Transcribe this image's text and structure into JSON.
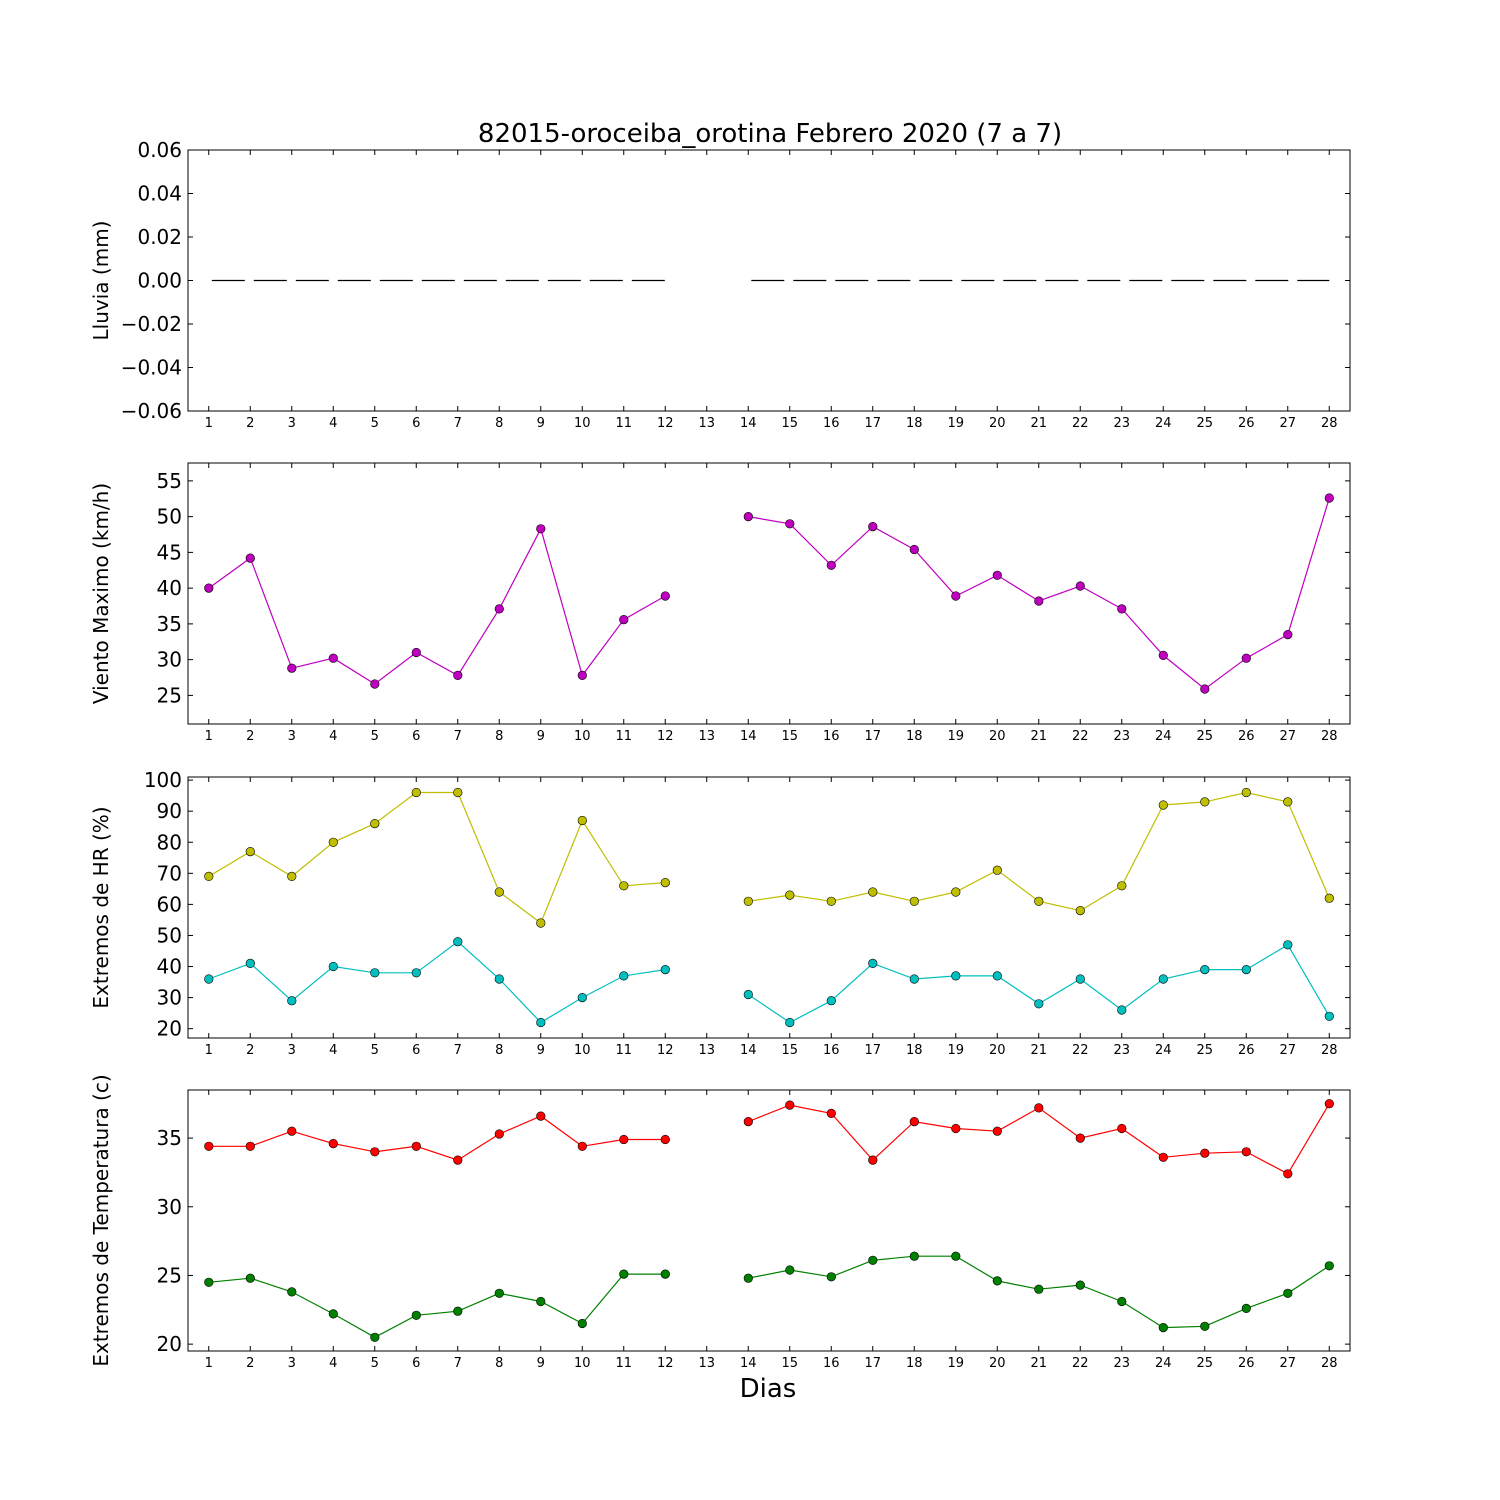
{
  "chart_data": {
    "type": "line",
    "title": "82015-oroceiba_orotina Febrero 2020  (7 a 7)",
    "xlabel": "Dias",
    "x": [
      1,
      2,
      3,
      4,
      5,
      6,
      7,
      8,
      9,
      10,
      11,
      12,
      13,
      14,
      15,
      16,
      17,
      18,
      19,
      20,
      21,
      22,
      23,
      24,
      25,
      26,
      27,
      28
    ],
    "panels": [
      {
        "id": "lluvia",
        "ylabel": "Lluvia (mm)",
        "ylim": [
          -0.06,
          0.06
        ],
        "yticks": [
          0.06,
          0.04,
          0.02,
          0.0,
          -0.02,
          -0.04,
          -0.06
        ],
        "ytick_labels": [
          "0.06",
          "0.04",
          "0.02",
          "0.00",
          "−0.02",
          "−0.04",
          "−0.06"
        ],
        "series": [
          {
            "color": "#000000",
            "style": "dashed",
            "marker": "none",
            "values": [
              0,
              0,
              0,
              0,
              0,
              0,
              0,
              0,
              0,
              0,
              0,
              0,
              null,
              0,
              0,
              0,
              0,
              0,
              0,
              0,
              0,
              0,
              0,
              0,
              0,
              0,
              0,
              0
            ]
          }
        ]
      },
      {
        "id": "viento",
        "ylabel": "Viento Maximo (km/h)",
        "ylim": [
          21,
          57.5
        ],
        "yticks": [
          55,
          50,
          45,
          40,
          35,
          30,
          25
        ],
        "ytick_labels": [
          "55",
          "50",
          "45",
          "40",
          "35",
          "30",
          "25"
        ],
        "series": [
          {
            "color": "#bf00bf",
            "marker": "circle",
            "values": [
              40.0,
              44.2,
              28.8,
              30.2,
              26.6,
              31.0,
              27.8,
              37.1,
              48.3,
              27.8,
              35.6,
              38.9,
              null,
              50.0,
              49.0,
              43.2,
              48.6,
              45.4,
              38.9,
              41.8,
              38.2,
              40.3,
              37.1,
              30.6,
              25.9,
              30.2,
              33.5,
              52.6
            ]
          }
        ]
      },
      {
        "id": "hr",
        "ylabel": "Extremos de HR (%)",
        "ylim": [
          17,
          101
        ],
        "yticks": [
          100,
          90,
          80,
          70,
          60,
          50,
          40,
          30,
          20
        ],
        "ytick_labels": [
          "100",
          "90",
          "80",
          "70",
          "60",
          "50",
          "40",
          "30",
          "20"
        ],
        "series": [
          {
            "color": "#bfbf00",
            "marker": "circle",
            "values": [
              69,
              77,
              69,
              80,
              86,
              96,
              96,
              64,
              54,
              87,
              66,
              67,
              null,
              61,
              63,
              61,
              64,
              61,
              64,
              71,
              61,
              58,
              66,
              92,
              93,
              96,
              93,
              62
            ]
          },
          {
            "color": "#00bfbf",
            "marker": "circle",
            "values": [
              36,
              41,
              29,
              40,
              38,
              38,
              48,
              36,
              22,
              30,
              37,
              39,
              null,
              31,
              22,
              29,
              41,
              36,
              37,
              37,
              28,
              36,
              26,
              36,
              39,
              39,
              47,
              24
            ]
          }
        ]
      },
      {
        "id": "temp",
        "ylabel": "Extremos de Temperatura (c)",
        "ylim": [
          19.5,
          38.5
        ],
        "yticks": [
          35,
          30,
          25,
          20
        ],
        "ytick_labels": [
          "35",
          "30",
          "25",
          "20"
        ],
        "series": [
          {
            "color": "#ff0000",
            "marker": "circle",
            "values": [
              34.4,
              34.4,
              35.5,
              34.6,
              34.0,
              34.4,
              33.4,
              35.3,
              36.6,
              34.4,
              34.9,
              34.9,
              null,
              36.2,
              37.4,
              36.8,
              33.4,
              36.2,
              35.7,
              35.5,
              37.2,
              35.0,
              35.7,
              33.6,
              33.9,
              34.0,
              32.4,
              37.5
            ]
          },
          {
            "color": "#008000",
            "marker": "circle",
            "values": [
              24.5,
              24.8,
              23.8,
              22.2,
              20.5,
              22.1,
              22.4,
              23.7,
              23.1,
              21.5,
              25.1,
              25.1,
              null,
              24.8,
              25.4,
              24.9,
              26.1,
              26.4,
              26.4,
              24.6,
              24.0,
              24.3,
              23.1,
              21.2,
              21.3,
              22.6,
              23.7,
              25.7
            ]
          }
        ]
      }
    ],
    "grid": false,
    "legend": "none"
  }
}
